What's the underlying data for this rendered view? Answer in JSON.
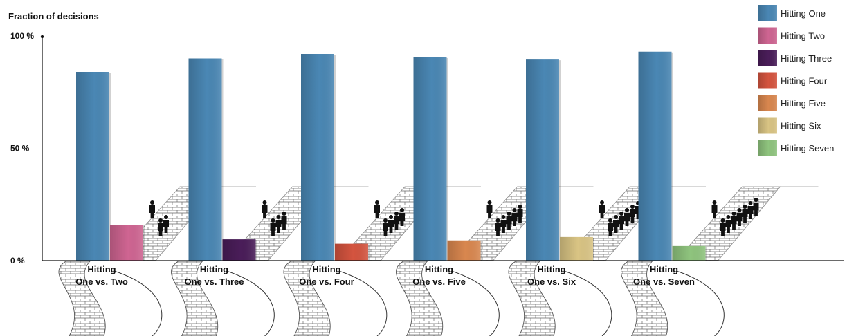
{
  "chart_data": {
    "type": "bar",
    "ylabel": "Fraction of decisions",
    "ylim": [
      0,
      100
    ],
    "yticks": [
      "0 %",
      "50 %",
      "100 %"
    ],
    "ytick_values": [
      0,
      50,
      100
    ],
    "categories": [
      {
        "line1": "Hitting",
        "line2": "One vs. Two"
      },
      {
        "line1": "Hitting",
        "line2": "One vs. Three"
      },
      {
        "line1": "Hitting",
        "line2": "One vs. Four"
      },
      {
        "line1": "Hitting",
        "line2": "One vs. Five"
      },
      {
        "line1": "Hitting",
        "line2": "One vs. Six"
      },
      {
        "line1": "Hitting",
        "line2": "One vs. Seven"
      }
    ],
    "series": [
      {
        "name": "Hitting One",
        "color": "#4a87b4",
        "values": [
          84,
          90,
          92,
          90.5,
          89.5,
          93
        ]
      },
      {
        "name": "Hitting Two",
        "color": "#cf6592",
        "values": [
          16,
          null,
          null,
          null,
          null,
          null
        ]
      },
      {
        "name": "Hitting Three",
        "color": "#4a1d59",
        "values": [
          null,
          9.5,
          null,
          null,
          null,
          null
        ]
      },
      {
        "name": "Hitting Four",
        "color": "#d4543f",
        "values": [
          null,
          null,
          7.5,
          null,
          null,
          null
        ]
      },
      {
        "name": "Hitting Five",
        "color": "#d9874f",
        "values": [
          null,
          null,
          null,
          9,
          null,
          null
        ]
      },
      {
        "name": "Hitting Six",
        "color": "#d9c484",
        "values": [
          null,
          null,
          null,
          null,
          10.5,
          null
        ]
      },
      {
        "name": "Hitting Seven",
        "color": "#8fc47e",
        "values": [
          null,
          null,
          null,
          null,
          null,
          6.5
        ]
      }
    ],
    "legend_position": "top-right",
    "grid": false,
    "people_counts": [
      [
        1,
        2
      ],
      [
        1,
        3
      ],
      [
        1,
        4
      ],
      [
        1,
        5
      ],
      [
        1,
        6
      ],
      [
        1,
        7
      ]
    ]
  }
}
